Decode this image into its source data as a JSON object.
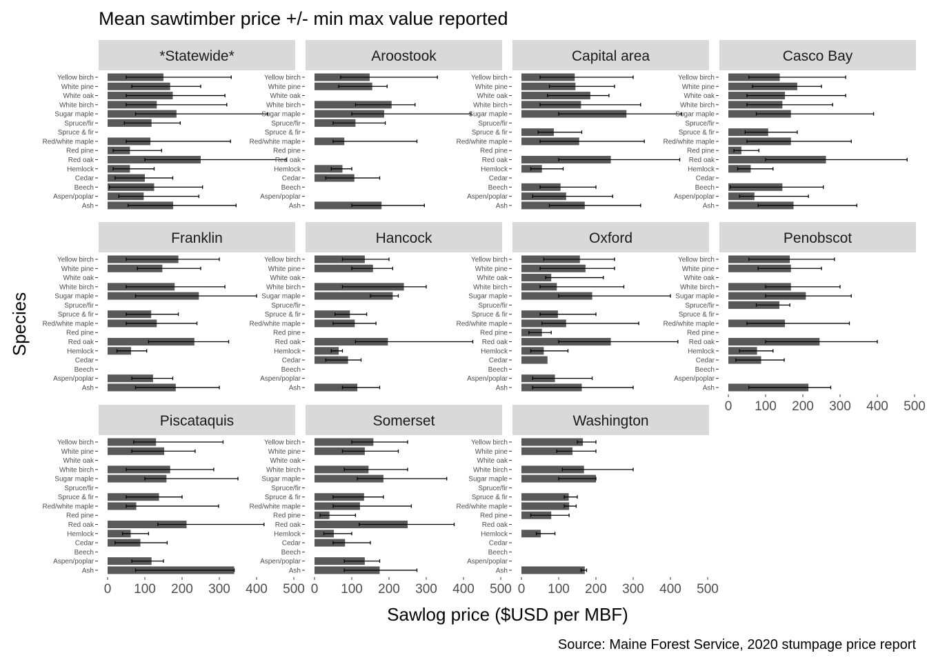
{
  "chart_data": {
    "type": "bar",
    "orientation": "horizontal",
    "facet": true,
    "title": "Mean sawtimber price +/- min max value reported",
    "xlabel": "Sawlog price ($USD per MBF)",
    "ylabel": "Species",
    "caption": "Source: Maine Forest Service, 2020 stumpage price report",
    "xlim": [
      0,
      500
    ],
    "xticks": [
      0,
      100,
      200,
      300,
      400,
      500
    ],
    "grid": false,
    "bar_color": "#595959",
    "strip_color": "#d9d9d9",
    "errorbar_color": "#000000",
    "categories": [
      "Yellow birch",
      "White pine",
      "White oak",
      "White birch",
      "Sugar maple",
      "Spruce/fir",
      "Spruce & fir",
      "Red/white maple",
      "Red pine",
      "Red oak",
      "Hemlock",
      "Cedar",
      "Beech",
      "Aspen/poplar",
      "Ash"
    ],
    "facets": [
      {
        "name": "*Statewide*",
        "values": [
          150,
          168,
          175,
          132,
          185,
          118,
          null,
          115,
          60,
          250,
          60,
          100,
          125,
          97,
          176
        ],
        "min": [
          50,
          65,
          50,
          50,
          75,
          45,
          null,
          50,
          15,
          100,
          15,
          20,
          5,
          30,
          55
        ],
        "max": [
          332,
          250,
          315,
          320,
          430,
          195,
          null,
          330,
          145,
          480,
          125,
          175,
          255,
          245,
          345
        ]
      },
      {
        "name": "Aroostook",
        "values": [
          148,
          155,
          null,
          207,
          187,
          110,
          null,
          80,
          null,
          null,
          75,
          107,
          null,
          null,
          180
        ],
        "min": [
          70,
          65,
          null,
          110,
          100,
          50,
          null,
          50,
          null,
          null,
          45,
          30,
          null,
          null,
          100
        ],
        "max": [
          330,
          195,
          null,
          270,
          420,
          190,
          null,
          275,
          null,
          null,
          100,
          175,
          null,
          null,
          295
        ]
      },
      {
        "name": "Capital area",
        "values": [
          143,
          145,
          185,
          160,
          282,
          null,
          87,
          155,
          null,
          240,
          55,
          null,
          105,
          120,
          170
        ],
        "min": [
          50,
          75,
          70,
          50,
          100,
          null,
          45,
          50,
          null,
          100,
          25,
          null,
          50,
          30,
          75
        ],
        "max": [
          300,
          250,
          235,
          320,
          430,
          null,
          162,
          330,
          null,
          425,
          112,
          null,
          200,
          245,
          320
        ]
      },
      {
        "name": "Casco Bay",
        "values": [
          138,
          185,
          152,
          145,
          168,
          null,
          107,
          168,
          35,
          262,
          60,
          null,
          145,
          70,
          175
        ],
        "min": [
          55,
          65,
          50,
          50,
          75,
          null,
          45,
          50,
          15,
          100,
          25,
          null,
          5,
          30,
          80
        ],
        "max": [
          315,
          250,
          315,
          280,
          390,
          null,
          185,
          330,
          82,
          480,
          120,
          null,
          255,
          215,
          345
        ]
      },
      {
        "name": "Franklin",
        "values": [
          190,
          147,
          null,
          180,
          245,
          null,
          117,
          132,
          null,
          233,
          63,
          null,
          null,
          122,
          183
        ],
        "min": [
          50,
          80,
          null,
          50,
          75,
          null,
          50,
          50,
          null,
          110,
          25,
          null,
          null,
          65,
          75
        ],
        "max": [
          300,
          250,
          null,
          315,
          400,
          null,
          190,
          240,
          null,
          325,
          105,
          null,
          null,
          175,
          300
        ]
      },
      {
        "name": "Hancock",
        "values": [
          135,
          157,
          null,
          240,
          210,
          null,
          95,
          108,
          null,
          197,
          65,
          90,
          null,
          null,
          115
        ],
        "min": [
          75,
          100,
          null,
          75,
          150,
          null,
          55,
          50,
          null,
          110,
          45,
          30,
          null,
          null,
          75
        ],
        "max": [
          200,
          210,
          null,
          300,
          225,
          null,
          140,
          165,
          null,
          425,
          75,
          125,
          null,
          null,
          175
        ]
      },
      {
        "name": "Oxford",
        "values": [
          157,
          172,
          80,
          95,
          190,
          null,
          98,
          120,
          55,
          240,
          60,
          70,
          null,
          90,
          162
        ],
        "min": [
          60,
          50,
          65,
          50,
          100,
          null,
          50,
          55,
          20,
          100,
          25,
          null,
          5,
          30,
          30
        ],
        "max": [
          250,
          250,
          220,
          275,
          400,
          null,
          200,
          315,
          80,
          420,
          125,
          215,
          null,
          190,
          300
        ]
      },
      {
        "name": "Penobscot",
        "values": [
          165,
          168,
          null,
          168,
          208,
          137,
          null,
          152,
          null,
          245,
          77,
          88,
          null,
          null,
          215
        ],
        "min": [
          55,
          80,
          null,
          100,
          100,
          75,
          null,
          50,
          null,
          100,
          30,
          20,
          null,
          null,
          55
        ],
        "max": [
          285,
          250,
          null,
          300,
          330,
          165,
          null,
          325,
          null,
          400,
          120,
          150,
          null,
          null,
          275
        ]
      },
      {
        "name": "Piscataquis",
        "values": [
          130,
          152,
          null,
          168,
          158,
          null,
          138,
          77,
          null,
          212,
          62,
          88,
          null,
          118,
          340
        ],
        "min": [
          70,
          65,
          null,
          50,
          100,
          null,
          50,
          50,
          null,
          135,
          40,
          20,
          null,
          65,
          75
        ],
        "max": [
          310,
          235,
          null,
          285,
          350,
          null,
          200,
          298,
          null,
          420,
          110,
          160,
          null,
          150,
          340
        ]
      },
      {
        "name": "Somerset",
        "values": [
          158,
          135,
          null,
          145,
          185,
          null,
          133,
          122,
          40,
          250,
          52,
          82,
          null,
          135,
          175
        ],
        "min": [
          100,
          75,
          null,
          80,
          115,
          null,
          50,
          50,
          15,
          120,
          25,
          50,
          null,
          80,
          80
        ],
        "max": [
          250,
          225,
          null,
          250,
          355,
          null,
          185,
          260,
          110,
          375,
          100,
          150,
          null,
          175,
          275
        ]
      },
      {
        "name": "Washington",
        "values": [
          165,
          137,
          null,
          168,
          200,
          null,
          127,
          128,
          80,
          null,
          52,
          null,
          null,
          null,
          170
        ],
        "min": [
          150,
          95,
          null,
          110,
          100,
          null,
          115,
          115,
          25,
          null,
          40,
          null,
          null,
          null,
          160
        ],
        "max": [
          200,
          200,
          null,
          300,
          200,
          null,
          150,
          147,
          128,
          null,
          90,
          null,
          null,
          null,
          175
        ]
      }
    ]
  }
}
